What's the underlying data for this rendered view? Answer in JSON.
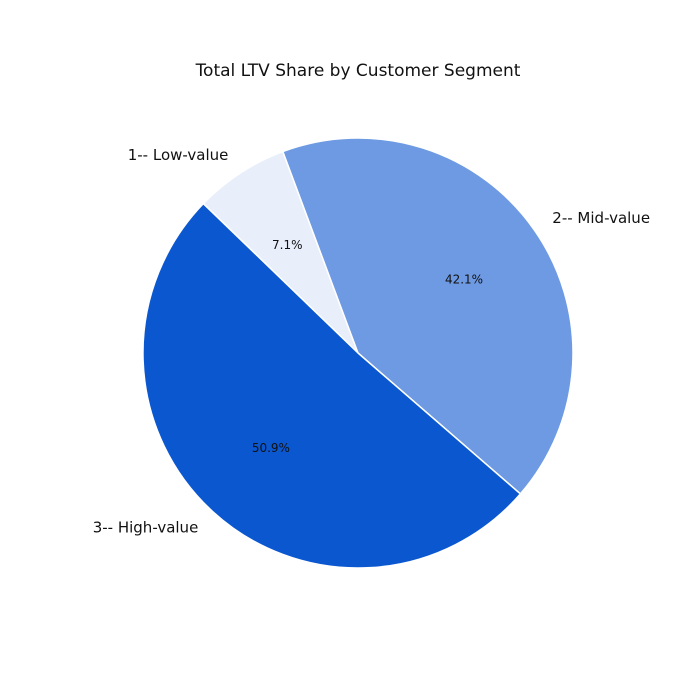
{
  "chart_data": {
    "type": "pie",
    "title": "Total LTV Share by Customer Segment",
    "start_angle_deg": 136,
    "direction": "clockwise",
    "slices": [
      {
        "name": "1-- Low-value",
        "pct_label": "7.1%",
        "value": 7.1,
        "color": "#e8eefa"
      },
      {
        "name": "2-- Mid-value",
        "pct_label": "42.1%",
        "value": 42.1,
        "color": "#6d9ae3"
      },
      {
        "name": "3-- High-value",
        "pct_label": "50.9%",
        "value": 50.9,
        "color": "#0a57d0"
      }
    ]
  }
}
